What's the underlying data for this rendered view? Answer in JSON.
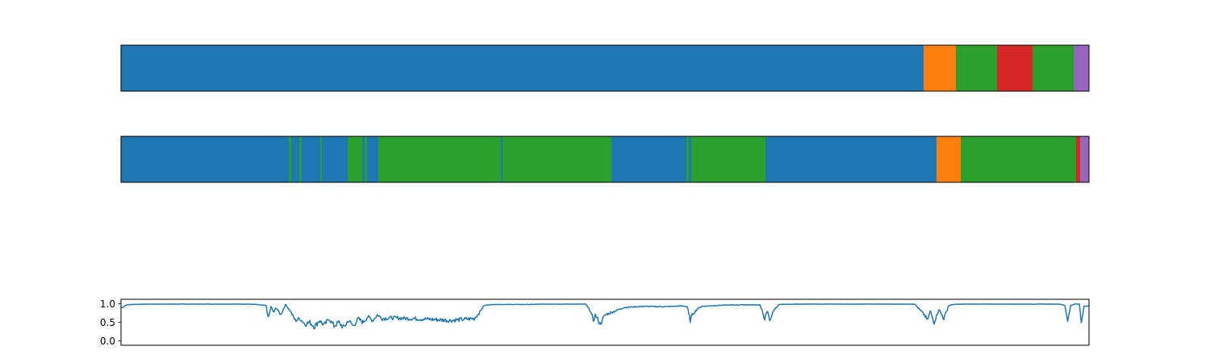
{
  "chart_data": [
    {
      "type": "segments",
      "title": "",
      "xlabel": "",
      "ylabel": "",
      "xlim": [
        0,
        1000
      ],
      "axis_ticks": false,
      "segments": [
        {
          "start": 0,
          "end": 829.2,
          "color": "#1f77b4"
        },
        {
          "start": 829.2,
          "end": 862.5,
          "color": "#ff7f0e"
        },
        {
          "start": 862.5,
          "end": 905.0,
          "color": "#2ca02c"
        },
        {
          "start": 905.0,
          "end": 941.7,
          "color": "#d62728"
        },
        {
          "start": 941.7,
          "end": 984.2,
          "color": "#2ca02c"
        },
        {
          "start": 984.2,
          "end": 1000,
          "color": "#9467bd"
        }
      ]
    },
    {
      "type": "segments",
      "title": "",
      "xlabel": "",
      "ylabel": "",
      "xlim": [
        0,
        1000
      ],
      "axis_ticks": false,
      "segments": [
        {
          "start": 0,
          "end": 173.3,
          "color": "#1f77b4"
        },
        {
          "start": 173.3,
          "end": 175.8,
          "color": "#2ca02c"
        },
        {
          "start": 175.8,
          "end": 184.2,
          "color": "#1f77b4"
        },
        {
          "start": 184.2,
          "end": 186.3,
          "color": "#2ca02c"
        },
        {
          "start": 186.3,
          "end": 205.8,
          "color": "#1f77b4"
        },
        {
          "start": 205.8,
          "end": 207.5,
          "color": "#2ca02c"
        },
        {
          "start": 207.5,
          "end": 234.2,
          "color": "#1f77b4"
        },
        {
          "start": 234.2,
          "end": 249.2,
          "color": "#2ca02c"
        },
        {
          "start": 249.2,
          "end": 251.7,
          "color": "#1f77b4"
        },
        {
          "start": 251.7,
          "end": 254.2,
          "color": "#2ca02c"
        },
        {
          "start": 254.2,
          "end": 265.8,
          "color": "#1f77b4"
        },
        {
          "start": 265.8,
          "end": 392.5,
          "color": "#2ca02c"
        },
        {
          "start": 392.5,
          "end": 394.2,
          "color": "#1f77b4"
        },
        {
          "start": 394.2,
          "end": 506.7,
          "color": "#2ca02c"
        },
        {
          "start": 506.7,
          "end": 584.2,
          "color": "#1f77b4"
        },
        {
          "start": 584.2,
          "end": 586.7,
          "color": "#2ca02c"
        },
        {
          "start": 586.7,
          "end": 589.2,
          "color": "#1f77b4"
        },
        {
          "start": 589.2,
          "end": 665.8,
          "color": "#2ca02c"
        },
        {
          "start": 665.8,
          "end": 842.5,
          "color": "#1f77b4"
        },
        {
          "start": 842.5,
          "end": 867.5,
          "color": "#ff7f0e"
        },
        {
          "start": 867.5,
          "end": 986.7,
          "color": "#2ca02c"
        },
        {
          "start": 986.7,
          "end": 990.8,
          "color": "#d62728"
        },
        {
          "start": 990.8,
          "end": 1000,
          "color": "#9467bd"
        }
      ]
    },
    {
      "type": "line",
      "title": "",
      "xlabel": "",
      "ylabel": "",
      "xlim": [
        0,
        1000
      ],
      "ylim": [
        -0.12,
        1.12
      ],
      "yticks": [
        "0.0",
        "0.5",
        "1.0"
      ],
      "color": "#1f77b4",
      "series": [
        {
          "x": [
            0,
            5,
            10,
            30,
            60,
            100,
            130,
            140,
            145,
            150,
            152,
            155,
            158,
            160,
            165,
            170,
            175,
            180,
            185,
            190,
            195,
            200,
            205,
            210,
            215,
            220,
            225,
            230,
            235,
            240,
            245,
            250,
            255,
            260,
            265,
            270,
            280,
            300,
            320,
            340,
            365,
            370,
            375,
            380,
            385,
            390,
            395,
            400,
            405,
            410,
            420,
            440,
            460,
            480,
            485,
            488,
            490,
            495,
            500,
            520,
            540,
            560,
            580,
            585,
            588,
            590,
            595,
            600,
            620,
            640,
            660,
            665,
            668,
            670,
            675,
            680,
            700,
            740,
            780,
            820,
            830,
            833,
            836,
            840,
            845,
            850,
            855,
            860,
            870,
            900,
            940,
            960,
            970,
            975,
            978,
            981,
            985,
            990,
            992,
            995,
            998,
            1000
          ],
          "y": [
            0.88,
            0.96,
            0.98,
            0.99,
            0.99,
            0.99,
            0.99,
            0.98,
            0.96,
            0.95,
            0.6,
            0.92,
            0.75,
            0.9,
            0.7,
            0.98,
            0.8,
            0.55,
            0.6,
            0.45,
            0.5,
            0.38,
            0.55,
            0.42,
            0.6,
            0.4,
            0.5,
            0.35,
            0.55,
            0.4,
            0.6,
            0.5,
            0.65,
            0.55,
            0.7,
            0.6,
            0.62,
            0.6,
            0.58,
            0.55,
            0.6,
            0.75,
            0.95,
            0.97,
            0.98,
            0.98,
            0.98,
            0.98,
            0.98,
            0.98,
            0.98,
            0.99,
            0.99,
            0.99,
            0.8,
            0.55,
            0.7,
            0.45,
            0.7,
            0.9,
            0.93,
            0.92,
            0.94,
            0.92,
            0.55,
            0.7,
            0.85,
            0.93,
            0.96,
            0.97,
            0.97,
            0.6,
            0.8,
            0.55,
            0.85,
            0.98,
            0.99,
            0.99,
            0.99,
            0.99,
            0.7,
            0.55,
            0.8,
            0.5,
            0.85,
            0.6,
            0.95,
            0.98,
            0.99,
            0.99,
            0.99,
            0.99,
            0.99,
            0.95,
            0.55,
            0.95,
            0.99,
            0.99,
            0.5,
            0.95,
            0.92,
            0.95
          ]
        }
      ]
    }
  ]
}
